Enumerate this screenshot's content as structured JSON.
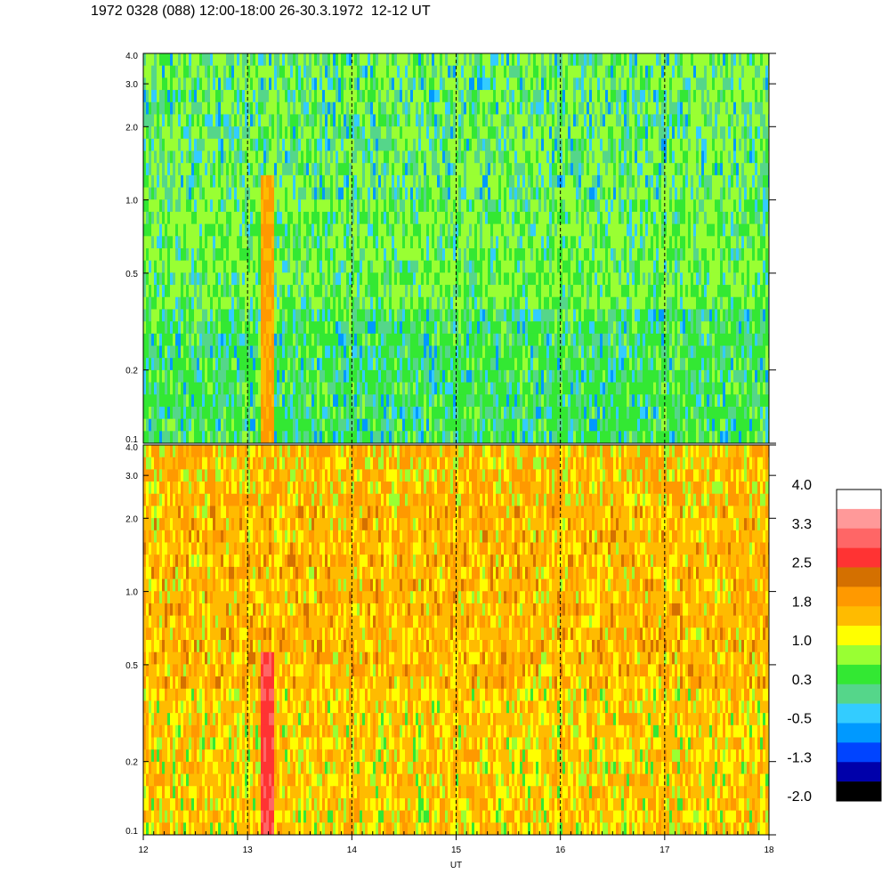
{
  "chart_data": {
    "type": "heatmap",
    "title": "1972 0328 (088) 12:00-18:00 26-30.3.1972  12-12 UT",
    "xlabel": "UT",
    "x_ticks": [
      "12",
      "13",
      "14",
      "15",
      "16",
      "17",
      "18"
    ],
    "xlim": [
      12,
      18
    ],
    "y_scale": "log",
    "ylim": [
      0.1,
      4.0
    ],
    "y_ticks": [
      "4.0",
      "3.0",
      "2.0",
      "1.0",
      "0.5",
      "0.2",
      "0.1"
    ],
    "panels": [
      {
        "id": "upper",
        "dominant_colors": [
          "#33e833",
          "#99ff33",
          "#55d68a",
          "#33ccff",
          "#0099ff"
        ]
      },
      {
        "id": "lower",
        "dominant_colors": [
          "#ffbb00",
          "#ff9900",
          "#ffff00",
          "#99ff33",
          "#ff3333"
        ]
      }
    ],
    "colorbar": {
      "labels": [
        "4.0",
        "3.3",
        "2.5",
        "1.8",
        "1.0",
        "0.3",
        "-0.5",
        "-1.3",
        "-2.0"
      ],
      "colors_top_to_bottom": [
        "#ffffff",
        "#ff9999",
        "#ff6666",
        "#ff3333",
        "#d47000",
        "#ff9900",
        "#ffbb00",
        "#ffff00",
        "#99ff33",
        "#33e833",
        "#55d68a",
        "#33ccff",
        "#0099ff",
        "#0044ff",
        "#0000aa",
        "#000000"
      ]
    },
    "dashed_hour_lines": [
      "13",
      "14",
      "15",
      "16",
      "17"
    ],
    "grid": false,
    "legend": "right"
  }
}
